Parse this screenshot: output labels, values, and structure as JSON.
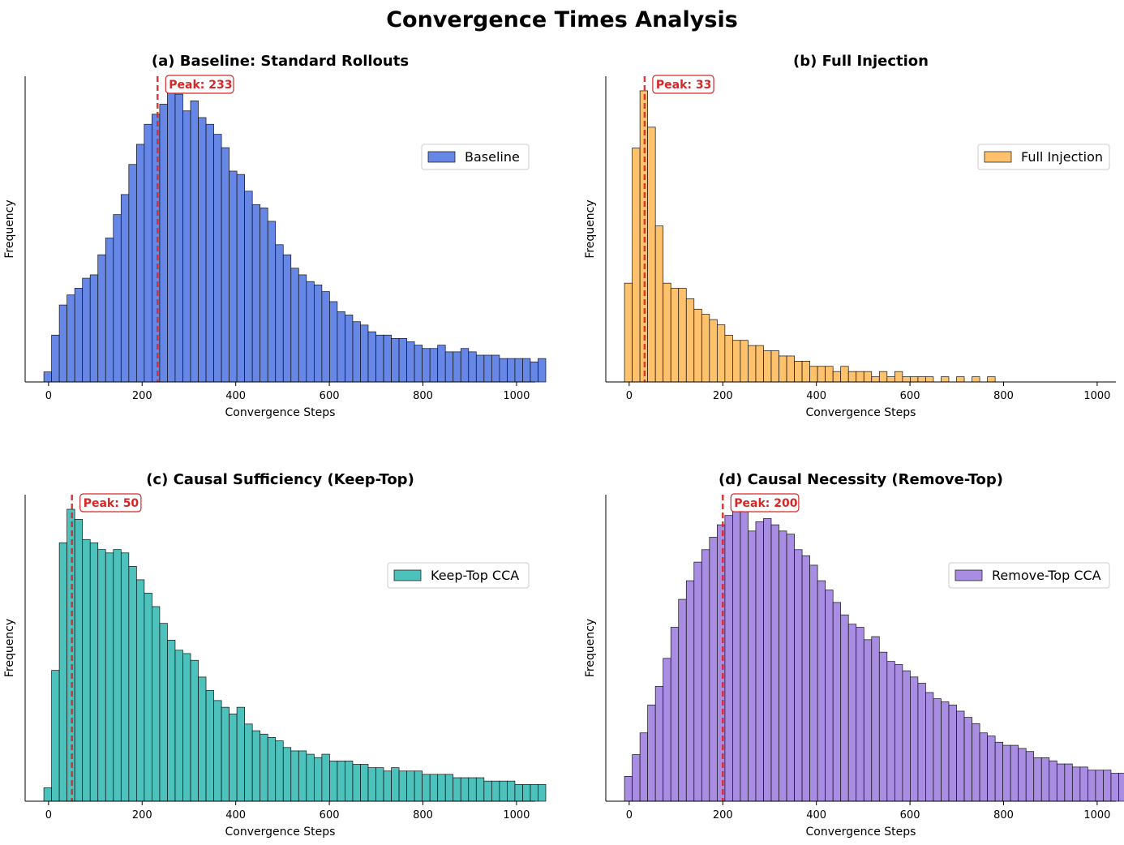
{
  "figure_title": "Convergence Times Analysis",
  "chart_data": [
    {
      "type": "bar",
      "subtype": "histogram",
      "title": "(a) Baseline: Standard Rollouts",
      "xlabel": "Convergence Steps",
      "ylabel": "Frequency",
      "xlim": [
        -50,
        1040
      ],
      "xticks": [
        0,
        200,
        400,
        600,
        800,
        1000
      ],
      "bin_start": -10,
      "bin_width": 16.5,
      "values": [
        3,
        14,
        23,
        26,
        28,
        31,
        32,
        38,
        43,
        50,
        56,
        65,
        71,
        77,
        80,
        83,
        87,
        86,
        81,
        84,
        79,
        77,
        74,
        70,
        63,
        62,
        57,
        53,
        52,
        48,
        41,
        38,
        34,
        32,
        30,
        29,
        27,
        24,
        21,
        20,
        18,
        17,
        15,
        14,
        14,
        13,
        13,
        12,
        11,
        10,
        10,
        11,
        9,
        9,
        10,
        9,
        8,
        8,
        8,
        7,
        7,
        7,
        7,
        6,
        7
      ],
      "color": "#4169e1",
      "legend": "Baseline",
      "peak_label": "Peak: 233",
      "peak_x": 233
    },
    {
      "type": "bar",
      "subtype": "histogram",
      "title": "(b) Full Injection",
      "xlabel": "Convergence Steps",
      "ylabel": "Frequency",
      "xlim": [
        -50,
        1040
      ],
      "xticks": [
        0,
        200,
        400,
        600,
        800,
        1000
      ],
      "bin_start": -10,
      "bin_width": 16.5,
      "values": [
        19,
        45,
        56,
        49,
        30,
        19,
        18,
        18,
        16,
        14,
        13,
        12,
        11,
        9,
        8,
        8,
        7,
        7,
        6,
        6,
        5,
        5,
        4,
        4,
        3,
        3,
        3,
        2,
        3,
        2,
        2,
        2,
        1,
        2,
        1,
        2,
        1,
        1,
        1,
        1,
        0,
        1,
        0,
        1,
        0,
        1,
        0,
        1,
        0,
        0,
        0,
        0,
        0,
        0,
        0,
        0,
        0,
        0,
        0,
        0,
        0
      ],
      "color": "#ffb347",
      "legend": "Full Injection",
      "peak_label": "Peak: 33",
      "peak_x": 33
    },
    {
      "type": "bar",
      "subtype": "histogram",
      "title": "(c) Causal Sufficiency (Keep-Top)",
      "xlabel": "Convergence Steps",
      "ylabel": "Frequency",
      "xlim": [
        -50,
        1040
      ],
      "xticks": [
        0,
        200,
        400,
        600,
        800,
        1000
      ],
      "bin_start": -10,
      "bin_width": 16.5,
      "values": [
        4,
        39,
        77,
        87,
        84,
        78,
        77,
        75,
        74,
        75,
        74,
        70,
        66,
        62,
        58,
        53,
        48,
        45,
        44,
        42,
        37,
        33,
        30,
        28,
        26,
        28,
        23,
        21,
        20,
        19,
        18,
        16,
        15,
        15,
        14,
        13,
        14,
        12,
        12,
        12,
        11,
        11,
        10,
        10,
        9,
        10,
        9,
        9,
        9,
        8,
        8,
        8,
        8,
        7,
        7,
        7,
        7,
        6,
        6,
        6,
        6,
        5,
        5,
        5,
        5
      ],
      "color": "#20b2aa",
      "legend": "Keep-Top CCA",
      "peak_label": "Peak: 50",
      "peak_x": 50
    },
    {
      "type": "bar",
      "subtype": "histogram",
      "title": "(d) Causal Necessity (Remove-Top)",
      "xlabel": "Convergence Steps",
      "ylabel": "Frequency",
      "xlim": [
        -50,
        1040
      ],
      "xticks": [
        0,
        200,
        400,
        600,
        800,
        1000
      ],
      "bin_start": -10,
      "bin_width": 16.5,
      "values": [
        8,
        15,
        22,
        31,
        37,
        46,
        56,
        65,
        71,
        77,
        81,
        85,
        89,
        92,
        94,
        94,
        87,
        90,
        91,
        89,
        87,
        86,
        81,
        79,
        76,
        71,
        68,
        64,
        60,
        57,
        56,
        52,
        53,
        48,
        45,
        44,
        42,
        40,
        38,
        35,
        33,
        32,
        31,
        29,
        27,
        25,
        22,
        21,
        19,
        18,
        18,
        17,
        16,
        14,
        14,
        13,
        12,
        12,
        11,
        11,
        10,
        10,
        10,
        9,
        9
      ],
      "color": "#9370db",
      "legend": "Remove-Top CCA",
      "peak_label": "Peak: 200",
      "peak_x": 200
    }
  ]
}
